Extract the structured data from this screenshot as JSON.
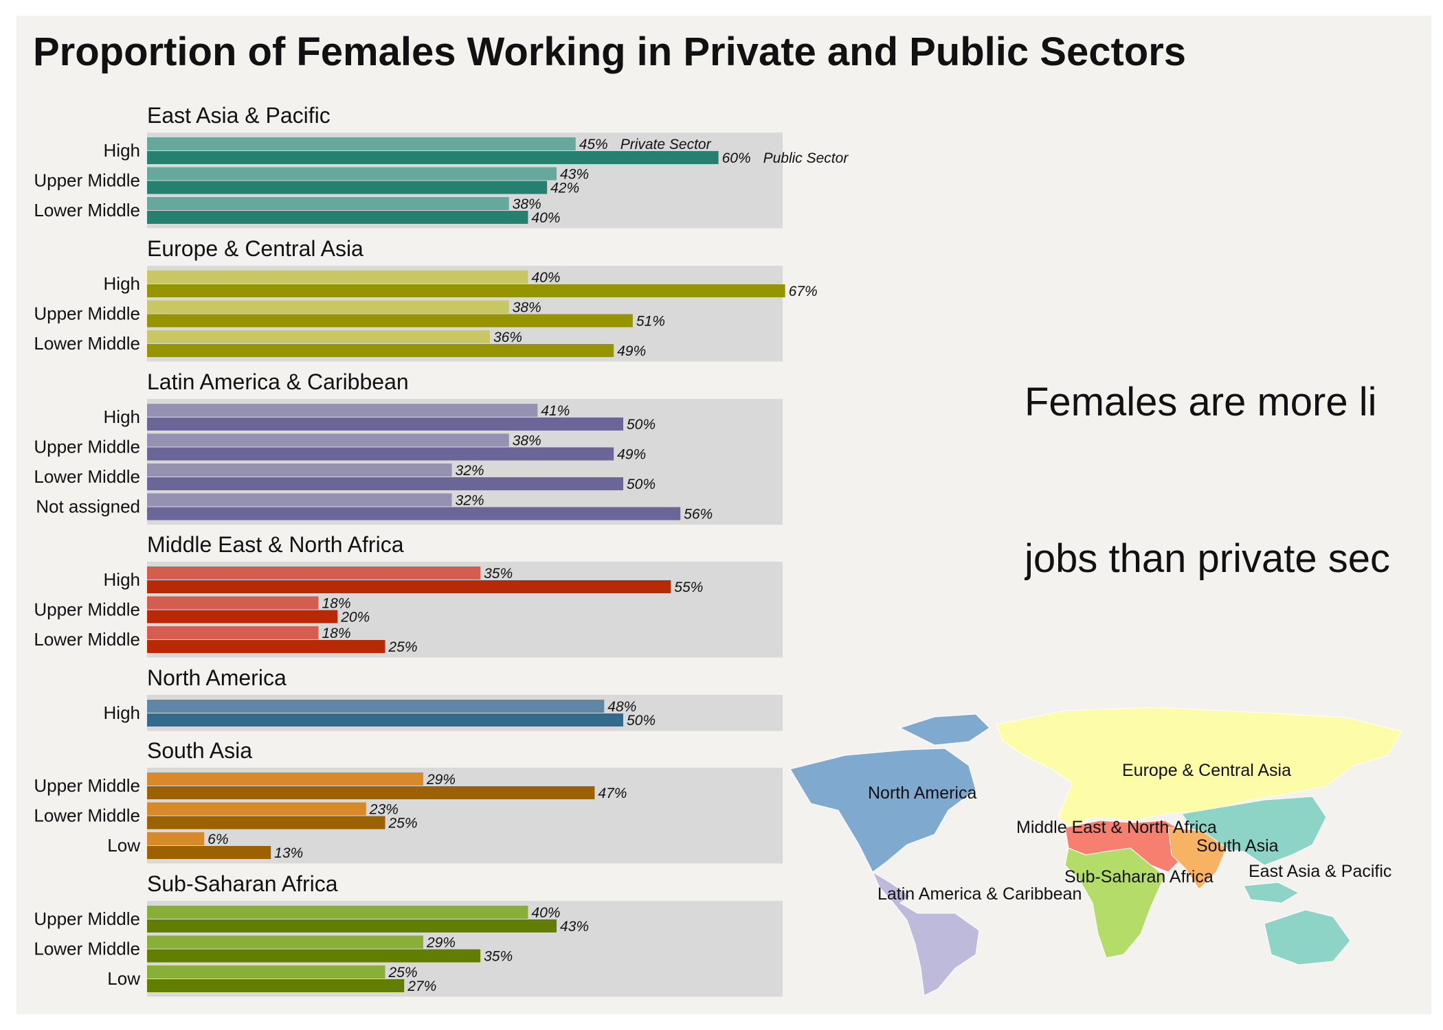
{
  "title": "Proportion of Females Working in Private and Public Sectors",
  "callout": {
    "line1": "Females are more li",
    "line2": "jobs than private sec"
  },
  "chart_data": {
    "type": "bar",
    "orientation": "horizontal",
    "title": "Proportion of Females Working in Private and Public Sectors",
    "series_names": [
      "Private Sector",
      "Public Sector"
    ],
    "value_unit": "%",
    "xlim": [
      0,
      100
    ],
    "groups": [
      {
        "name": "East Asia & Pacific",
        "colors": [
          "#67a89d",
          "#258070"
        ],
        "rows": [
          {
            "label": "High",
            "private": 45,
            "public": 60
          },
          {
            "label": "Upper Middle",
            "private": 43,
            "public": 42
          },
          {
            "label": "Lower Middle",
            "private": 38,
            "public": 40
          }
        ]
      },
      {
        "name": "Europe & Central Asia",
        "colors": [
          "#c8c764",
          "#969400"
        ],
        "rows": [
          {
            "label": "High",
            "private": 40,
            "public": 67
          },
          {
            "label": "Upper Middle",
            "private": 38,
            "public": 51
          },
          {
            "label": "Lower Middle",
            "private": 36,
            "public": 49
          }
        ]
      },
      {
        "name": "Latin America & Caribbean",
        "colors": [
          "#9591b3",
          "#6b6698"
        ],
        "rows": [
          {
            "label": "High",
            "private": 41,
            "public": 50
          },
          {
            "label": "Upper Middle",
            "private": 38,
            "public": 49
          },
          {
            "label": "Lower Middle",
            "private": 32,
            "public": 50
          },
          {
            "label": "Not assigned",
            "private": 32,
            "public": 56
          }
        ]
      },
      {
        "name": "Middle East & North Africa",
        "colors": [
          "#d45d4f",
          "#b82a05"
        ],
        "rows": [
          {
            "label": "High",
            "private": 35,
            "public": 55
          },
          {
            "label": "Upper Middle",
            "private": 18,
            "public": 20
          },
          {
            "label": "Lower Middle",
            "private": 18,
            "public": 25
          }
        ]
      },
      {
        "name": "North America",
        "colors": [
          "#5d87a8",
          "#336b8c"
        ],
        "rows": [
          {
            "label": "High",
            "private": 48,
            "public": 50
          }
        ]
      },
      {
        "name": "South Asia",
        "colors": [
          "#d88a2a",
          "#9c6100"
        ],
        "rows": [
          {
            "label": "Upper Middle",
            "private": 29,
            "public": 47
          },
          {
            "label": "Lower Middle",
            "private": 23,
            "public": 25
          },
          {
            "label": "Low",
            "private": 6,
            "public": 13
          }
        ]
      },
      {
        "name": "Sub-Saharan Africa",
        "colors": [
          "#88af38",
          "#627e00"
        ],
        "rows": [
          {
            "label": "Upper Middle",
            "private": 40,
            "public": 43
          },
          {
            "label": "Lower Middle",
            "private": 29,
            "public": 35
          },
          {
            "label": "Low",
            "private": 25,
            "public": 27
          }
        ]
      }
    ]
  },
  "map": {
    "regions": [
      {
        "name": "North America",
        "color": "#7fa9cf"
      },
      {
        "name": "Europe & Central Asia",
        "color": "#fdfca8"
      },
      {
        "name": "Middle East & North Africa",
        "color": "#f77f70"
      },
      {
        "name": "South Asia",
        "color": "#f8b264"
      },
      {
        "name": "East Asia & Pacific",
        "color": "#8dd4c6"
      },
      {
        "name": "Sub-Saharan Africa",
        "color": "#b3dc68"
      },
      {
        "name": "Latin America & Caribbean",
        "color": "#bebadb"
      }
    ]
  }
}
